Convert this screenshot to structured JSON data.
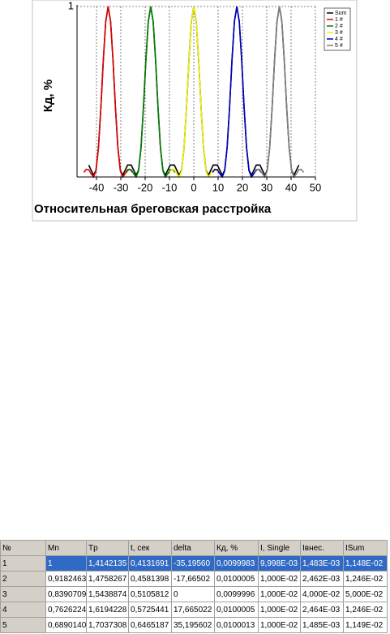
{
  "chart_data": {
    "type": "line",
    "xlabel": "Относительная бреговская расстройка",
    "ylabel": "Кд, %",
    "xlim": [
      -48,
      50
    ],
    "ylim": [
      0,
      1
    ],
    "xticks": [
      -40,
      -30,
      -20,
      -10,
      0,
      10,
      20,
      30,
      40,
      50
    ],
    "yticks": [
      1
    ],
    "grid": true,
    "legend": "upper right",
    "series": [
      {
        "name": "Sum",
        "color": "#000000",
        "x": [
          -43.2,
          -42.2,
          -41.2,
          -40.2,
          -39.2,
          -38.2,
          -37.2,
          -36.2,
          -35.2,
          -34.2,
          -33.2,
          -32.2,
          -31.2,
          -30.2,
          -29.2,
          -28.2,
          -27.2,
          -25.7,
          -24.7,
          -23.7,
          -22.7,
          -21.7,
          -20.7,
          -19.7,
          -18.7,
          -17.7,
          -16.7,
          -15.7,
          -14.7,
          -13.7,
          -12.7,
          -11.7,
          -10.7,
          -9.7,
          -8,
          -7,
          -6,
          -5,
          -4,
          -3,
          -2,
          -1,
          0,
          1,
          2,
          3,
          4,
          5,
          6,
          7,
          8,
          9.7,
          10.7,
          11.7,
          12.7,
          13.7,
          14.7,
          15.7,
          16.7,
          17.7,
          18.7,
          19.7,
          20.7,
          21.7,
          22.7,
          23.7,
          24.7,
          25.7,
          27.2,
          28.2,
          29.2,
          30.2,
          31.2,
          32.2,
          33.2,
          34.2,
          35.2,
          36.2,
          37.2,
          38.2,
          39.2,
          40.2,
          41.2,
          42.2,
          43.2
        ],
        "values": [
          0.07,
          0.04,
          0.01,
          0.04,
          0.171,
          0.405,
          0.684,
          0.912,
          1,
          0.912,
          0.684,
          0.405,
          0.171,
          0.04,
          0.01,
          0.04,
          0.07,
          0.07,
          0.04,
          0.01,
          0.04,
          0.171,
          0.405,
          0.684,
          0.912,
          1,
          0.912,
          0.684,
          0.405,
          0.171,
          0.04,
          0.01,
          0.04,
          0.07,
          0.07,
          0.04,
          0.01,
          0.04,
          0.171,
          0.405,
          0.684,
          0.912,
          1,
          0.912,
          0.684,
          0.405,
          0.171,
          0.04,
          0.01,
          0.04,
          0.07,
          0.07,
          0.04,
          0.01,
          0.04,
          0.171,
          0.405,
          0.684,
          0.912,
          1,
          0.912,
          0.684,
          0.405,
          0.171,
          0.04,
          0.01,
          0.04,
          0.07,
          0.07,
          0.04,
          0.01,
          0.04,
          0.171,
          0.405,
          0.684,
          0.912,
          1,
          0.912,
          0.684,
          0.405,
          0.171,
          0.04,
          0.01,
          0.04,
          0.07
        ]
      },
      {
        "name": "1 #",
        "color": "#e00000",
        "x": [
          -45.2,
          -44.2,
          -43.2,
          -42.2,
          -41.2,
          -40.2,
          -39.2,
          -38.2,
          -37.2,
          -36.2,
          -35.2,
          -34.2,
          -33.2,
          -32.2,
          -31.2,
          -30.2,
          -29.2,
          -28.2,
          -27.2,
          -26.2,
          -25.2
        ],
        "values": [
          0.027,
          0.045,
          0.043,
          0.019,
          0,
          0.036,
          0.171,
          0.405,
          0.684,
          0.912,
          1,
          0.912,
          0.684,
          0.405,
          0.171,
          0.036,
          0,
          0.019,
          0.043,
          0.045,
          0.027
        ]
      },
      {
        "name": "2 #",
        "color": "#008000",
        "x": [
          -27.7,
          -26.7,
          -25.7,
          -24.7,
          -23.7,
          -22.7,
          -21.7,
          -20.7,
          -19.7,
          -18.7,
          -17.7,
          -16.7,
          -15.7,
          -14.7,
          -13.7,
          -12.7,
          -11.7,
          -10.7,
          -9.7,
          -8.7,
          -7.7
        ],
        "values": [
          0.027,
          0.045,
          0.043,
          0.019,
          0,
          0.036,
          0.171,
          0.405,
          0.684,
          0.912,
          1,
          0.912,
          0.684,
          0.405,
          0.171,
          0.036,
          0,
          0.019,
          0.043,
          0.045,
          0.027
        ]
      },
      {
        "name": "3 #",
        "color": "#f0f000",
        "x": [
          -10,
          -9,
          -8,
          -7,
          -6,
          -5,
          -4,
          -3,
          -2,
          -1,
          0,
          1,
          2,
          3,
          4,
          5,
          6,
          7,
          8,
          9,
          10
        ],
        "values": [
          0.027,
          0.045,
          0.043,
          0.019,
          0,
          0.036,
          0.171,
          0.405,
          0.684,
          0.912,
          1,
          0.912,
          0.684,
          0.405,
          0.171,
          0.036,
          0,
          0.019,
          0.043,
          0.045,
          0.027
        ]
      },
      {
        "name": "4 #",
        "color": "#0000c0",
        "x": [
          7.7,
          8.7,
          9.7,
          10.7,
          11.7,
          12.7,
          13.7,
          14.7,
          15.7,
          16.7,
          17.7,
          18.7,
          19.7,
          20.7,
          21.7,
          22.7,
          23.7,
          24.7,
          25.7,
          26.7,
          27.7
        ],
        "values": [
          0.027,
          0.045,
          0.043,
          0.019,
          0,
          0.036,
          0.171,
          0.405,
          0.684,
          0.912,
          1,
          0.912,
          0.684,
          0.405,
          0.171,
          0.036,
          0,
          0.019,
          0.043,
          0.045,
          0.027
        ]
      },
      {
        "name": "5 #",
        "color": "#808080",
        "x": [
          25.2,
          26.2,
          27.2,
          28.2,
          29.2,
          30.2,
          31.2,
          32.2,
          33.2,
          34.2,
          35.2,
          36.2,
          37.2,
          38.2,
          39.2,
          40.2,
          41.2,
          42.2,
          43.2,
          44.2,
          45.2
        ],
        "values": [
          0.027,
          0.045,
          0.043,
          0.019,
          0,
          0.036,
          0.171,
          0.405,
          0.684,
          0.912,
          1,
          0.912,
          0.684,
          0.405,
          0.171,
          0.036,
          0,
          0.019,
          0.043,
          0.045,
          0.027
        ]
      }
    ]
  },
  "table": {
    "columns": [
      "№",
      "Mn",
      "Tp",
      "t, сек",
      "delta",
      "Кд, %",
      "I, Single",
      "Iвнес.",
      "ISum"
    ],
    "rows": [
      [
        "1",
        "1",
        "1,4142135",
        "0,4131691",
        "-35,19560",
        "0,0099983",
        "9,998E-03",
        "1,483E-03",
        "1,148E-02"
      ],
      [
        "2",
        "0,9182463",
        "1,4758267",
        "0,4581398",
        "-17,66502",
        "0,0100005",
        "1,000E-02",
        "2,462E-03",
        "1,246E-02"
      ],
      [
        "3",
        "0,8390709",
        "1,5438874",
        "0,5105812",
        "0",
        "0,0099996",
        "1,000E-02",
        "4,000E-02",
        "5,000E-02"
      ],
      [
        "4",
        "0,7626224",
        "1,6194228",
        "0,5725441",
        "17,665022",
        "0,0100005",
        "1,000E-02",
        "2,464E-03",
        "1,246E-02"
      ],
      [
        "5",
        "0,6890140",
        "1,7037308",
        "0,6465187",
        "35,195602",
        "0,0100013",
        "1,000E-02",
        "1,485E-03",
        "1,149E-02"
      ]
    ]
  }
}
